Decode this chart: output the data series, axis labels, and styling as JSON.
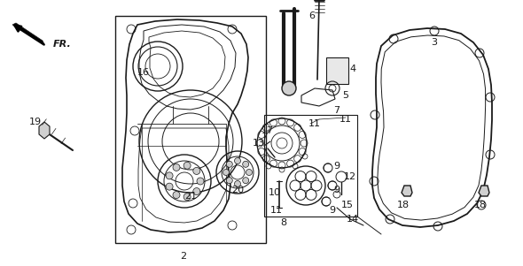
{
  "bg_color": "#ffffff",
  "line_color": "#1a1a1a",
  "fig_width": 5.9,
  "fig_height": 3.01,
  "dpi": 100
}
